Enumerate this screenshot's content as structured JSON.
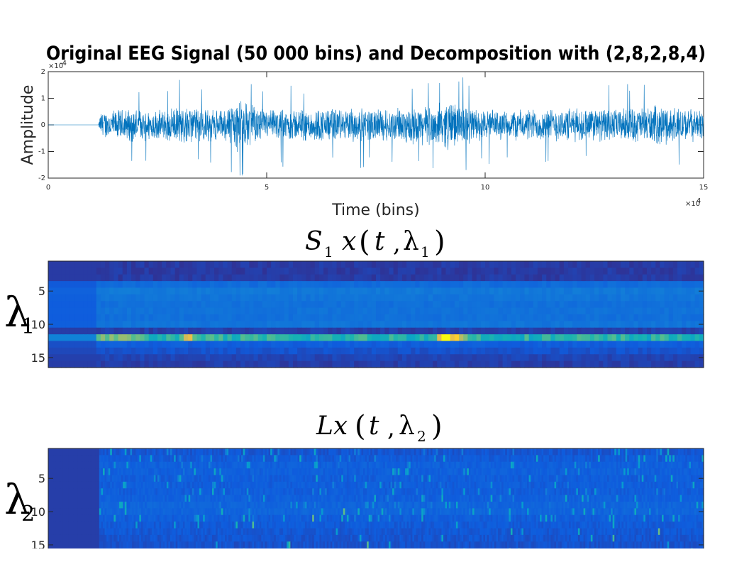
{
  "colors": {
    "signal": "#0072bd",
    "axis": "#262626",
    "parula_dark": "#352a87",
    "parula_blue": "#0f5cdd",
    "parula_cyan": "#1aaeca",
    "parula_yellow": "#f9fb0e"
  },
  "chart_data": [
    {
      "type": "line",
      "title": "Original EEG Signal (50 000 bins) and Decomposition with (2,8,2,8,4)",
      "xlabel": "Time (bins)",
      "ylabel": "Amplitude",
      "x_exponent": "×10",
      "x_exponent_power": "4",
      "y_exponent": "×10",
      "y_exponent_power": "-4",
      "xlim": [
        0,
        15
      ],
      "ylim": [
        -2,
        2
      ],
      "xticks": [
        "0",
        "5",
        "10",
        "15"
      ],
      "yticks": [
        "2",
        "1",
        "0",
        "-1",
        "-2"
      ],
      "signal_start": 1.15,
      "series": [
        {
          "envelope_x": [
            0,
            1.15,
            1.2,
            2,
            2.5,
            3.2,
            4,
            4.3,
            5,
            6,
            7,
            8,
            8.7,
            9.2,
            9.6,
            10,
            11,
            12,
            13,
            14,
            14.5,
            15
          ],
          "envelope_amp": [
            0,
            0,
            0.55,
            0.7,
            0.6,
            0.75,
            0.6,
            1.1,
            0.6,
            0.7,
            0.65,
            0.7,
            0.8,
            1.0,
            0.8,
            0.6,
            0.65,
            0.7,
            0.65,
            0.8,
            0.7,
            0.6
          ]
        }
      ]
    },
    {
      "type": "heatmap",
      "title_main": "S",
      "title_sub": "1",
      "title_arg": "x",
      "title_t": "t",
      "title_lambda": "λ",
      "title_lambda_sub": "1",
      "ylabel": "λ",
      "ylabel_sub": "1",
      "yticks": [
        "5",
        "10",
        "15"
      ],
      "ylim": [
        1,
        16
      ],
      "rows": 16,
      "onset": 1.15,
      "row_levels": [
        0.05,
        0.05,
        0.05,
        0.22,
        0.28,
        0.26,
        0.24,
        0.25,
        0.24,
        0.26,
        0.06,
        0.55,
        0.16,
        0.12,
        0.08,
        0.06
      ]
    },
    {
      "type": "heatmap",
      "title_main": "Lx",
      "title_t": "t",
      "title_lambda": "λ",
      "title_lambda_sub": "2",
      "ylabel": "λ",
      "ylabel_sub": "2",
      "yticks": [
        "5",
        "10",
        "15"
      ],
      "ylim": [
        1,
        16
      ],
      "rows": 16,
      "onset": 1.15,
      "row_levels": [
        0.1,
        0.12,
        0.14,
        0.14,
        0.13,
        0.13,
        0.13,
        0.14,
        0.16,
        0.16,
        0.13,
        0.12,
        0.11,
        0.1,
        0.09,
        0.09
      ]
    }
  ]
}
